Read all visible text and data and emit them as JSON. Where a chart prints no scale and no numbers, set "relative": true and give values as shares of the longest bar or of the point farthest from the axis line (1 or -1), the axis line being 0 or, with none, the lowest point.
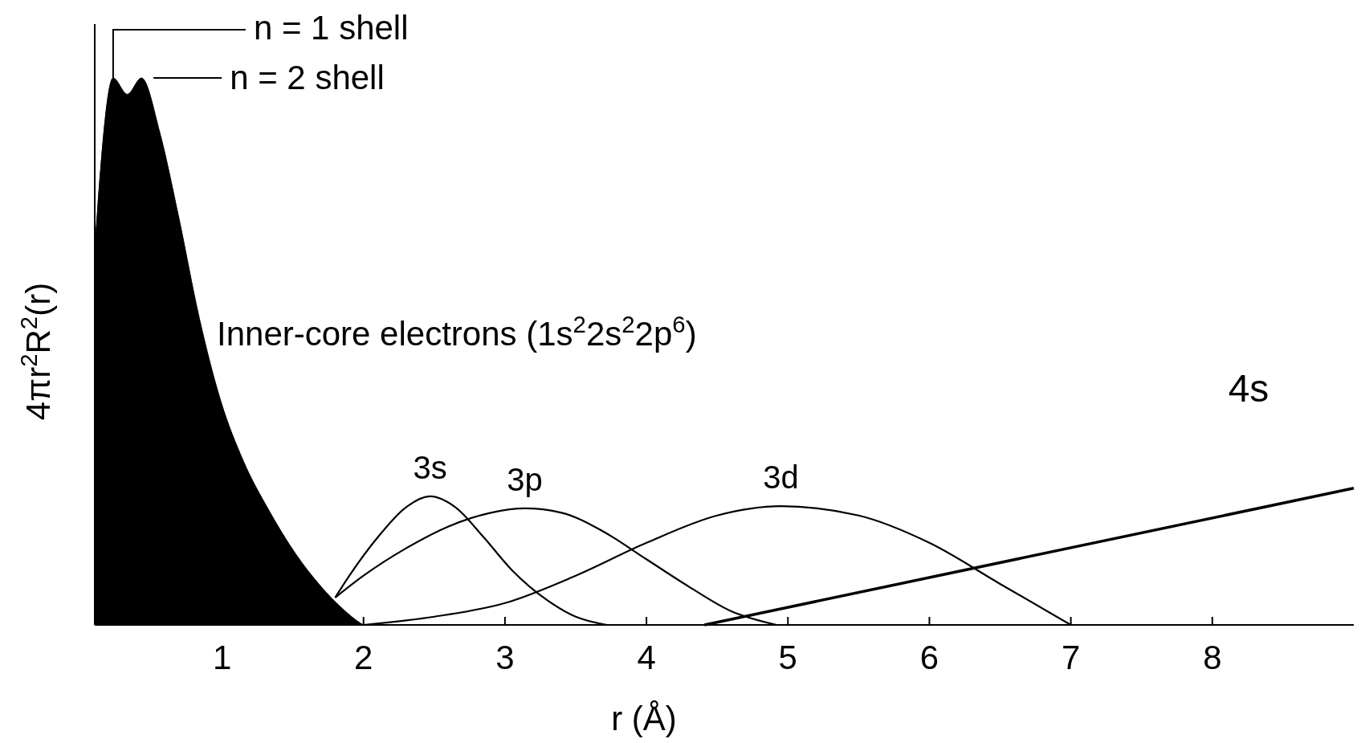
{
  "chart_data": {
    "type": "line",
    "relative": true,
    "xlabel": "r (Å)",
    "ylabel": "4πr$^{2}$R$^{2}$(r)",
    "xlim": [
      0.1,
      9.0
    ],
    "xticks": [
      1,
      2,
      3,
      4,
      5,
      6,
      7,
      8
    ],
    "grid": false,
    "series": [
      {
        "type": "area",
        "color": "#000000",
        "x": [
          0.1,
          0.23,
          0.33,
          0.43,
          0.56,
          0.69,
          0.84,
          0.99,
          1.15,
          1.33,
          1.52,
          1.7,
          1.85,
          1.98,
          2.0
        ],
        "values": [
          0.69,
          1.0,
          0.97,
          1.0,
          0.9,
          0.75,
          0.56,
          0.41,
          0.3,
          0.21,
          0.13,
          0.07,
          0.03,
          0.003,
          0
        ]
      },
      {
        "color": "#000000",
        "x": [
          1.8,
          1.9,
          2.1,
          2.3,
          2.47,
          2.65,
          2.85,
          3.05,
          3.3,
          3.5,
          3.72
        ],
        "values": [
          0.05,
          0.09,
          0.16,
          0.215,
          0.235,
          0.215,
          0.16,
          0.1,
          0.045,
          0.015,
          0
        ]
      },
      {
        "color": "#000000",
        "x": [
          1.8,
          2.0,
          2.3,
          2.6,
          2.9,
          3.14,
          3.4,
          3.7,
          4.0,
          4.3,
          4.6,
          4.92
        ],
        "values": [
          0.05,
          0.09,
          0.14,
          0.18,
          0.205,
          0.213,
          0.205,
          0.17,
          0.12,
          0.07,
          0.025,
          0
        ]
      },
      {
        "color": "#000000",
        "x": [
          2.0,
          2.5,
          3.0,
          3.5,
          4.0,
          4.5,
          4.95,
          5.5,
          6.0,
          6.5,
          7.0
        ],
        "values": [
          0,
          0.015,
          0.04,
          0.09,
          0.15,
          0.2,
          0.217,
          0.2,
          0.15,
          0.075,
          0
        ]
      },
      {
        "color": "#000000",
        "x": [
          4.41,
          9.0
        ],
        "values": [
          0,
          0.25
        ]
      }
    ],
    "annotations": [
      {
        "text": "n = 1 shell",
        "x": 0.23,
        "y": 1.0
      },
      {
        "text": "n = 2 shell",
        "x": 0.43,
        "y": 1.0
      },
      "Inner-core electrons (1s$^{2}$2s$^{2}$2p$^{6}$)",
      {
        "text": "3s",
        "x": 2.47,
        "y": 0.235
      },
      {
        "text": "3p",
        "x": 3.14,
        "y": 0.213
      },
      {
        "text": "3d",
        "x": 4.95,
        "y": 0.217
      },
      "4s"
    ]
  }
}
